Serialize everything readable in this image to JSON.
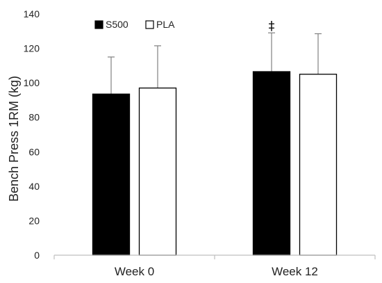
{
  "chart_data": {
    "type": "bar",
    "title": "",
    "xlabel": "",
    "ylabel": "Bench Press 1RM (kg)",
    "ylim": [
      0,
      140
    ],
    "yticks": [
      0,
      20,
      40,
      60,
      80,
      100,
      120,
      140
    ],
    "categories": [
      "Week 0",
      "Week 12"
    ],
    "series": [
      {
        "name": "S500",
        "color": "#000000",
        "fill": "#000000",
        "values": [
          93.5,
          106.5
        ],
        "error": [
          21.5,
          22.5
        ]
      },
      {
        "name": "PLA",
        "color": "#000000",
        "fill": "#ffffff",
        "values": [
          97.0,
          105.0
        ],
        "error": [
          24.5,
          23.5
        ]
      }
    ],
    "legend_position": "top-left",
    "grid": false,
    "annotations": [
      {
        "text": "‡",
        "category": "Week 12",
        "series": "S500",
        "y": 138
      }
    ]
  }
}
